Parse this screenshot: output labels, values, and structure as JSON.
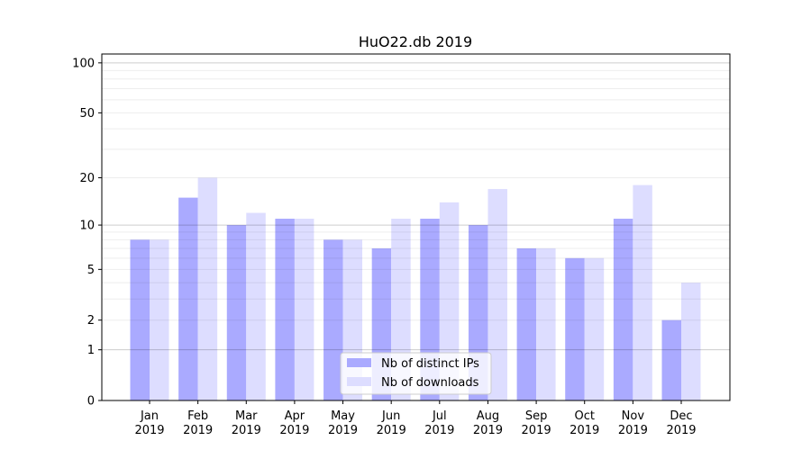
{
  "chart_data": {
    "type": "bar",
    "title": "HuO22.db 2019",
    "xlabel": "",
    "ylabel": "",
    "yscale": "symlog (log10(1+x))",
    "ylim": [
      0,
      113
    ],
    "yticks": [
      0,
      1,
      2,
      5,
      10,
      20,
      50,
      100
    ],
    "grid": true,
    "legend_position": "lower-center",
    "categories": [
      "Jan\n2019",
      "Feb\n2019",
      "Mar\n2019",
      "Apr\n2019",
      "May\n2019",
      "Jun\n2019",
      "Jul\n2019",
      "Aug\n2019",
      "Sep\n2019",
      "Oct\n2019",
      "Nov\n2019",
      "Dec\n2019"
    ],
    "category_labels": [
      {
        "month": "Jan",
        "year": "2019"
      },
      {
        "month": "Feb",
        "year": "2019"
      },
      {
        "month": "Mar",
        "year": "2019"
      },
      {
        "month": "Apr",
        "year": "2019"
      },
      {
        "month": "May",
        "year": "2019"
      },
      {
        "month": "Jun",
        "year": "2019"
      },
      {
        "month": "Jul",
        "year": "2019"
      },
      {
        "month": "Aug",
        "year": "2019"
      },
      {
        "month": "Sep",
        "year": "2019"
      },
      {
        "month": "Oct",
        "year": "2019"
      },
      {
        "month": "Nov",
        "year": "2019"
      },
      {
        "month": "Dec",
        "year": "2019"
      }
    ],
    "series": [
      {
        "name": "Nb of distinct IPs",
        "color": "#aaaaff",
        "values": [
          8,
          15,
          10,
          11,
          8,
          7,
          11,
          10,
          7,
          6,
          11,
          2
        ]
      },
      {
        "name": "Nb of downloads",
        "color": "#ddddff",
        "values": [
          8,
          20,
          12,
          11,
          8,
          11,
          14,
          17,
          7,
          6,
          18,
          4
        ]
      }
    ]
  }
}
